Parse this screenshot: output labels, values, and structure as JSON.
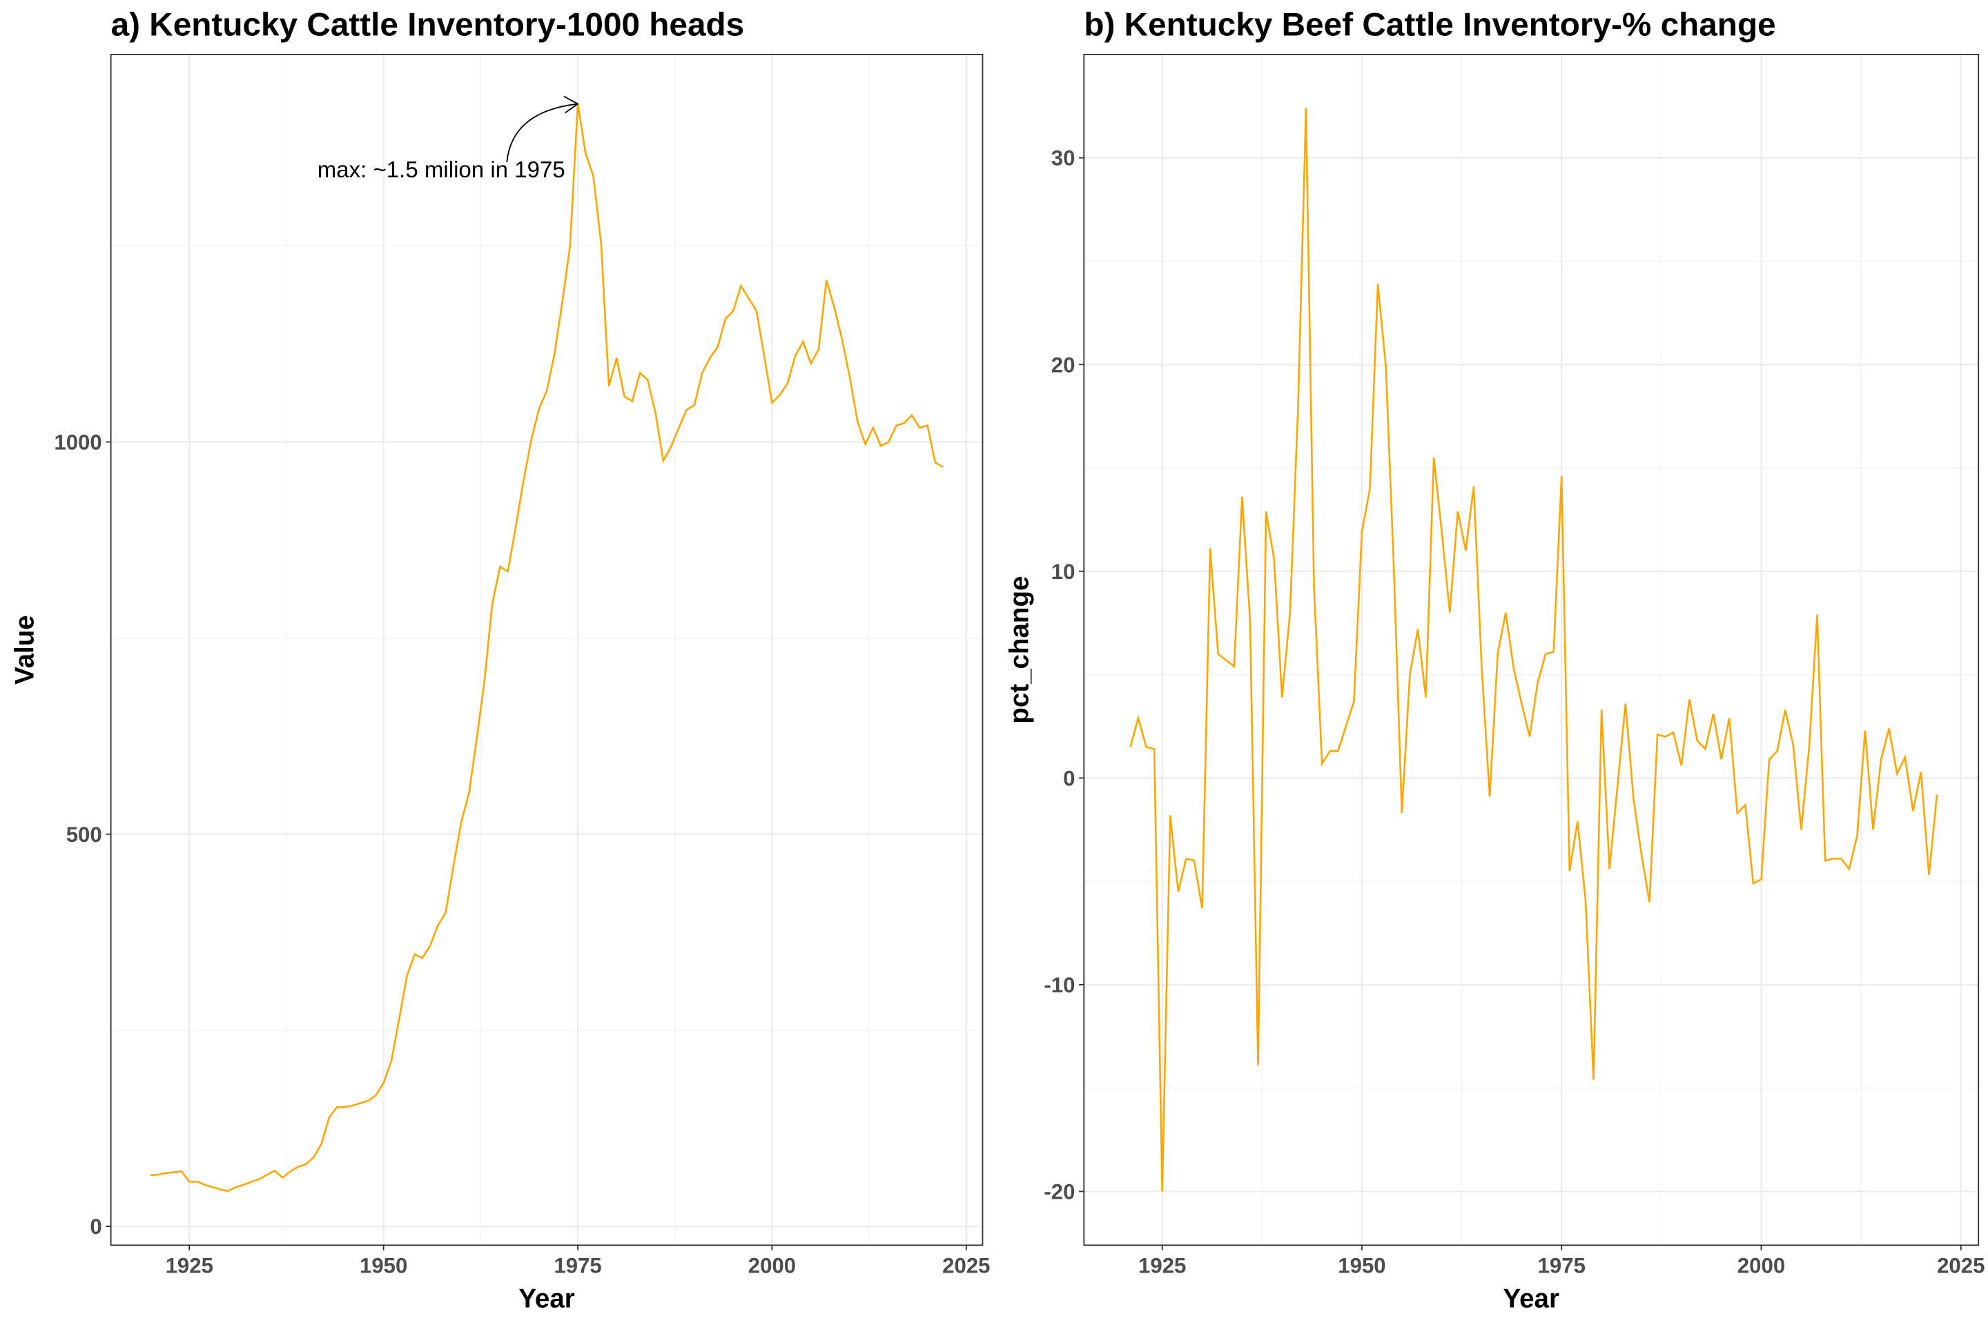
{
  "chart_data": [
    {
      "type": "line",
      "title": "a) Kentucky Cattle Inventory-1000 heads",
      "x_label": "Year",
      "y_label": "Value",
      "color": "#FFA500",
      "annotation": "max: ~1.5 milion in 1975",
      "x": [
        1920,
        1921,
        1922,
        1923,
        1924,
        1925,
        1926,
        1927,
        1928,
        1929,
        1930,
        1931,
        1932,
        1933,
        1934,
        1935,
        1936,
        1937,
        1938,
        1939,
        1940,
        1941,
        1942,
        1943,
        1944,
        1945,
        1946,
        1947,
        1948,
        1949,
        1950,
        1951,
        1952,
        1953,
        1954,
        1955,
        1956,
        1957,
        1958,
        1959,
        1960,
        1961,
        1962,
        1963,
        1964,
        1965,
        1966,
        1967,
        1968,
        1969,
        1970,
        1971,
        1972,
        1973,
        1974,
        1975,
        1976,
        1977,
        1978,
        1979,
        1980,
        1981,
        1982,
        1983,
        1984,
        1985,
        1986,
        1987,
        1988,
        1989,
        1990,
        1991,
        1992,
        1993,
        1994,
        1995,
        1996,
        1997,
        1998,
        1999,
        2000,
        2001,
        2002,
        2003,
        2004,
        2005,
        2006,
        2007,
        2008,
        2009,
        2010,
        2011,
        2012,
        2013,
        2014,
        2015,
        2016,
        2017,
        2018,
        2019,
        2020,
        2021,
        2022
      ],
      "values": [
        65,
        66,
        68,
        69,
        70,
        57,
        57,
        53,
        50,
        47,
        45,
        50,
        53,
        57,
        60,
        66,
        71,
        62,
        70,
        76,
        79,
        88,
        105,
        139,
        152,
        152,
        154,
        157,
        160,
        167,
        183,
        211,
        264,
        319,
        347,
        342,
        358,
        384,
        400,
        460,
        515,
        553,
        622,
        697,
        794,
        841,
        835,
        891,
        950,
        1002,
        1042,
        1065,
        1112,
        1178,
        1250,
        1431,
        1368,
        1339,
        1253,
        1071,
        1107,
        1058,
        1052,
        1088,
        1079,
        1037,
        976,
        994,
        1018,
        1041,
        1047,
        1088,
        1107,
        1121,
        1157,
        1167,
        1199,
        1183,
        1167,
        1109,
        1050,
        1060,
        1075,
        1110,
        1128,
        1100,
        1118,
        1206,
        1172,
        1131,
        1083,
        1026,
        997,
        1018,
        995,
        1000,
        1021,
        1024,
        1034,
        1018,
        1021,
        974,
        968
      ],
      "xlim": [
        1914.9,
        2027.1
      ],
      "xticks": [
        1925,
        1950,
        1975,
        2000,
        2025
      ],
      "xminor_ticks": [
        1937.5,
        1962.5,
        1987.5,
        2012.5
      ],
      "ylim": [
        -24,
        1494
      ],
      "yticks": [
        0,
        500,
        1000
      ],
      "yminor_ticks": [
        250,
        750,
        1250
      ],
      "grid": true
    },
    {
      "type": "line",
      "title": "b) Kentucky Beef Cattle Inventory-% change",
      "x_label": "Year",
      "y_label": "pct_change",
      "color": "#FFA500",
      "x": [
        1921,
        1922,
        1923,
        1924,
        1925,
        1926,
        1927,
        1928,
        1929,
        1930,
        1931,
        1932,
        1933,
        1934,
        1935,
        1936,
        1937,
        1938,
        1939,
        1940,
        1941,
        1942,
        1943,
        1944,
        1945,
        1946,
        1947,
        1948,
        1949,
        1950,
        1951,
        1952,
        1953,
        1954,
        1955,
        1956,
        1957,
        1958,
        1959,
        1960,
        1961,
        1962,
        1963,
        1964,
        1965,
        1966,
        1967,
        1968,
        1969,
        1970,
        1971,
        1972,
        1973,
        1974,
        1975,
        1976,
        1977,
        1978,
        1979,
        1980,
        1981,
        1982,
        1983,
        1984,
        1985,
        1986,
        1987,
        1988,
        1989,
        1990,
        1991,
        1992,
        1993,
        1994,
        1995,
        1996,
        1997,
        1998,
        1999,
        2000,
        2001,
        2002,
        2003,
        2004,
        2005,
        2006,
        2007,
        2008,
        2009,
        2010,
        2011,
        2012,
        2013,
        2014,
        2015,
        2016,
        2017,
        2018,
        2019,
        2020,
        2021,
        2022
      ],
      "values": [
        1.5,
        2.9,
        1.5,
        1.4,
        -20,
        -1.8,
        -5.5,
        -3.9,
        -4.0,
        -6.3,
        11.1,
        6.0,
        5.7,
        5.4,
        13.6,
        7.6,
        -13.9,
        12.9,
        10.6,
        3.9,
        8.0,
        17.9,
        32.4,
        9.3,
        0.7,
        1.3,
        1.3,
        2.5,
        3.7,
        11.9,
        14.0,
        23.9,
        19.9,
        10.1,
        -1.7,
        5.0,
        7.2,
        3.9,
        15.5,
        11.9,
        8.0,
        12.9,
        11.0,
        14.1,
        5.3,
        -0.9,
        6.0,
        8.0,
        5.3,
        3.6,
        2.0,
        4.6,
        6.0,
        6.1,
        14.6,
        -4.5,
        -2.1,
        -5.9,
        -14.6,
        3.3,
        -4.4,
        -0.4,
        3.6,
        -1.0,
        -3.7,
        -6.0,
        2.1,
        2.0,
        2.2,
        0.6,
        3.8,
        1.8,
        1.4,
        3.1,
        0.9,
        2.9,
        -1.7,
        -1.3,
        -5.1,
        -4.9,
        0.9,
        1.3,
        3.3,
        1.6,
        -2.5,
        1.5,
        7.9,
        -4.0,
        -3.9,
        -3.9,
        -4.4,
        -2.8,
        2.3,
        -2.5,
        0.9,
        2.4,
        0.2,
        1.0,
        -1.6,
        0.3,
        -4.7,
        -0.8
      ],
      "xlim": [
        1915.2,
        2027.2
      ],
      "xticks": [
        1925,
        1950,
        1975,
        2000,
        2025
      ],
      "xminor_ticks": [
        1937.5,
        1962.5,
        1987.5,
        2012.5
      ],
      "ylim": [
        -22.6,
        35.0
      ],
      "yticks": [
        -20,
        -10,
        0,
        10,
        20,
        30
      ],
      "yminor_ticks": [
        -15,
        -5,
        5,
        15,
        25
      ],
      "grid": true
    }
  ]
}
